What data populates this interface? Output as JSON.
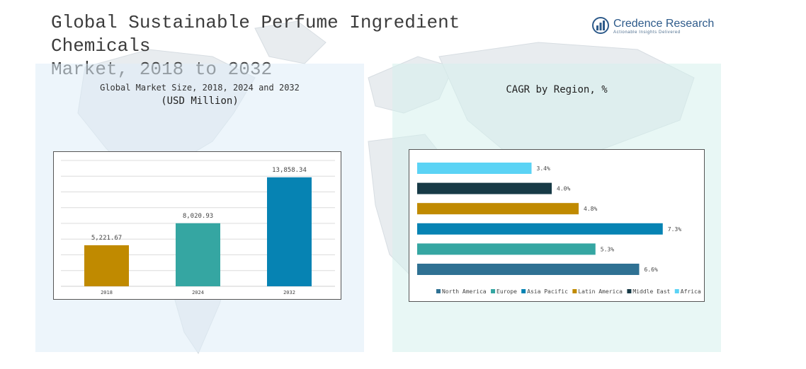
{
  "header": {
    "title_line1": "Global Sustainable Perfume Ingredient Chemicals",
    "title_line2": "Market, 2018 to 2032"
  },
  "logo": {
    "name": "Credence Research",
    "tagline": "Actionable Insights Delivered",
    "color": "#2d5a8a"
  },
  "chart_data": [
    {
      "type": "bar",
      "title": "Global Market Size, 2018, 2024 and 2032",
      "subtitle": "(USD Million)",
      "categories": [
        "2018",
        "2024",
        "2032"
      ],
      "values": [
        5221.67,
        8020.93,
        13858.34
      ],
      "value_labels": [
        "5,221.67",
        "8,020.93",
        "13,858.34"
      ],
      "colors": [
        "#c08a00",
        "#35a6a2",
        "#0683b3"
      ],
      "ylim": [
        0,
        16000
      ],
      "grid": true
    },
    {
      "type": "bar",
      "orientation": "horizontal",
      "title": "CAGR by Region, %",
      "categories": [
        "Africa",
        "Middle East",
        "Latin America",
        "Asia Pacific",
        "Europe",
        "North America"
      ],
      "values": [
        3.4,
        4.0,
        4.8,
        7.3,
        5.3,
        6.6
      ],
      "value_labels": [
        "3.4%",
        "4.0%",
        "4.8%",
        "7.3%",
        "5.3%",
        "6.6%"
      ],
      "colors": [
        "#5bd3f5",
        "#173a46",
        "#c08a00",
        "#0683b3",
        "#35a6a2",
        "#2f7193"
      ],
      "legend": {
        "placement": "bottom",
        "items": [
          {
            "label": "North America",
            "color": "#2f7193"
          },
          {
            "label": "Europe",
            "color": "#35a6a2"
          },
          {
            "label": "Asia Pacific",
            "color": "#0683b3"
          },
          {
            "label": "Latin America",
            "color": "#c08a00"
          },
          {
            "label": "Middle East",
            "color": "#173a46"
          },
          {
            "label": "Africa",
            "color": "#5bd3f5"
          }
        ]
      },
      "xlim": [
        0,
        8
      ]
    }
  ]
}
